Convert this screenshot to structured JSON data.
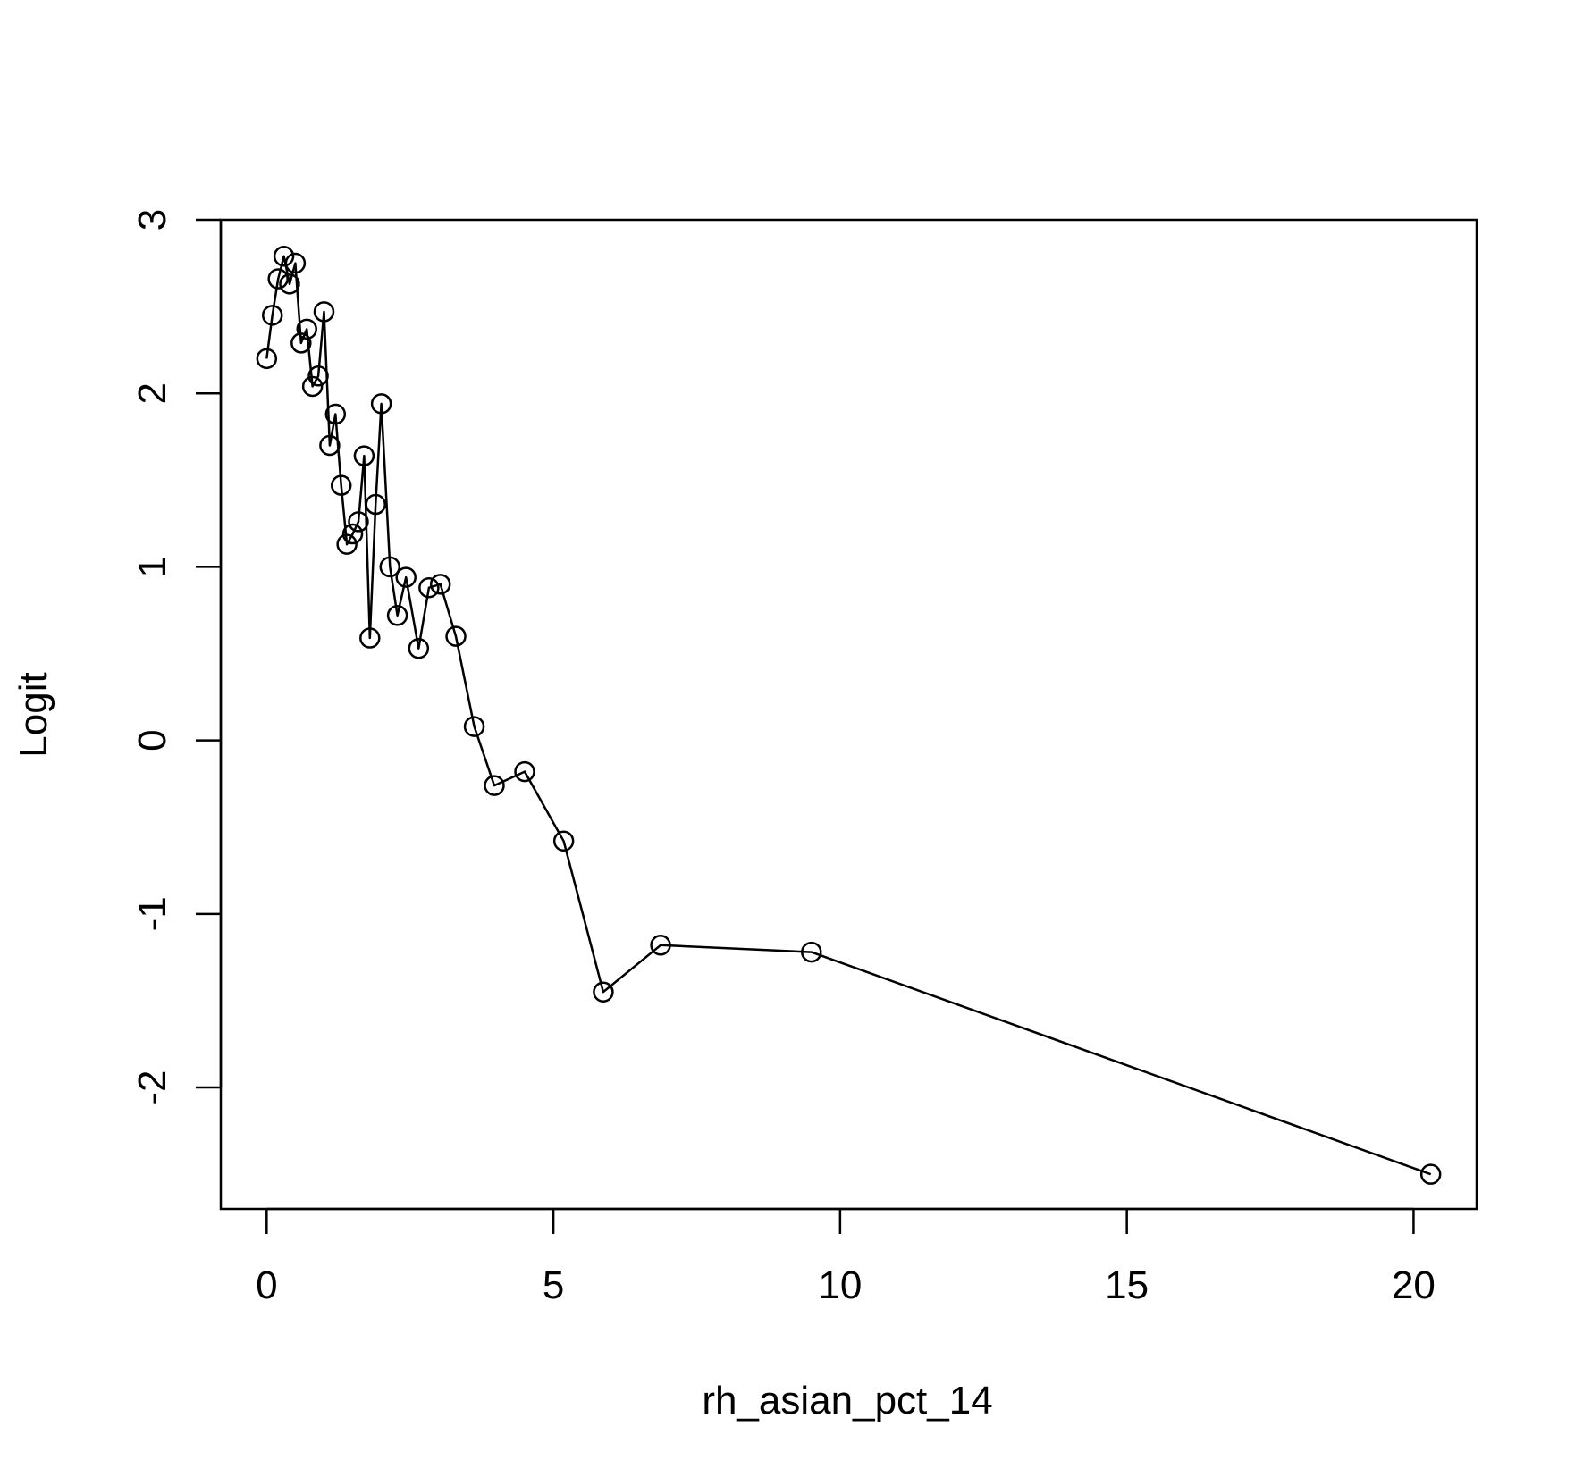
{
  "chart_data": {
    "type": "line",
    "title": "",
    "xlabel": "rh_asian_pct_14",
    "ylabel": "Logit",
    "xlim": [
      -0.8,
      21.1
    ],
    "ylim": [
      -2.7,
      3.0
    ],
    "x_ticks": [
      0,
      5,
      10,
      15,
      20
    ],
    "y_ticks": [
      -2,
      -1,
      0,
      1,
      2,
      3
    ],
    "x_tick_labels": [
      "0",
      "5",
      "10",
      "15",
      "20"
    ],
    "y_tick_labels": [
      "-2",
      "-1",
      "0",
      "1",
      "2",
      "3"
    ],
    "grid": false,
    "legend": "none",
    "marker": "open-circle",
    "color": "#000000",
    "series": [
      {
        "points": [
          [
            0.0,
            2.2
          ],
          [
            0.1,
            2.45
          ],
          [
            0.2,
            2.66
          ],
          [
            0.3,
            2.79
          ],
          [
            0.4,
            2.63
          ],
          [
            0.5,
            2.75
          ],
          [
            0.6,
            2.29
          ],
          [
            0.7,
            2.37
          ],
          [
            0.8,
            2.04
          ],
          [
            0.9,
            2.1
          ],
          [
            1.0,
            2.47
          ],
          [
            1.1,
            1.7
          ],
          [
            1.2,
            1.88
          ],
          [
            1.3,
            1.47
          ],
          [
            1.4,
            1.13
          ],
          [
            1.5,
            1.19
          ],
          [
            1.6,
            1.26
          ],
          [
            1.7,
            1.64
          ],
          [
            1.8,
            0.59
          ],
          [
            1.9,
            1.36
          ],
          [
            2.0,
            1.94
          ],
          [
            2.15,
            1.0
          ],
          [
            2.28,
            0.72
          ],
          [
            2.43,
            0.94
          ],
          [
            2.65,
            0.53
          ],
          [
            2.83,
            0.88
          ],
          [
            3.03,
            0.9
          ],
          [
            3.3,
            0.6
          ],
          [
            3.62,
            0.08
          ],
          [
            3.97,
            -0.26
          ],
          [
            4.5,
            -0.18
          ],
          [
            5.18,
            -0.58
          ],
          [
            5.87,
            -1.45
          ],
          [
            6.87,
            -1.18
          ],
          [
            9.5,
            -1.22
          ],
          [
            20.3,
            -2.5
          ]
        ]
      }
    ]
  }
}
